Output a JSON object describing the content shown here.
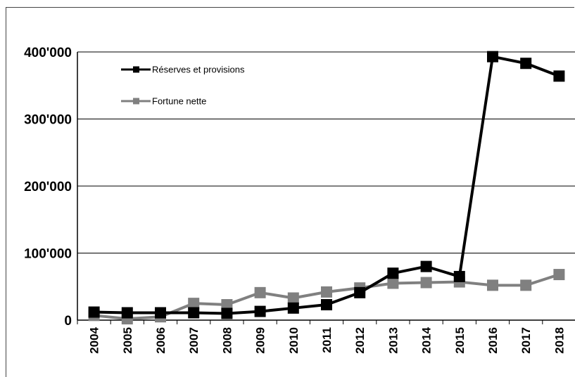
{
  "chart_data": {
    "type": "line",
    "x": [
      "2004",
      "2005",
      "2006",
      "2007",
      "2008",
      "2009",
      "2010",
      "2011",
      "2012",
      "2013",
      "2014",
      "2015",
      "2016",
      "2017",
      "2018"
    ],
    "series": [
      {
        "name": "Réserves et provisions",
        "color": "#000000",
        "values": [
          12000,
          11000,
          11000,
          11000,
          10000,
          13000,
          18000,
          23000,
          41000,
          70000,
          80000,
          65000,
          393000,
          383000,
          364000
        ]
      },
      {
        "name": "Fortune nette",
        "color": "#808080",
        "values": [
          7000,
          2000,
          5000,
          25000,
          23000,
          41000,
          33000,
          42000,
          48000,
          55000,
          56000,
          57000,
          52000,
          52000,
          68000
        ]
      }
    ],
    "yticks": [
      "0",
      "100'000",
      "200'000",
      "300'000",
      "400'000"
    ],
    "ylim": [
      0,
      400000
    ],
    "grid": true,
    "legend": "top-left"
  }
}
